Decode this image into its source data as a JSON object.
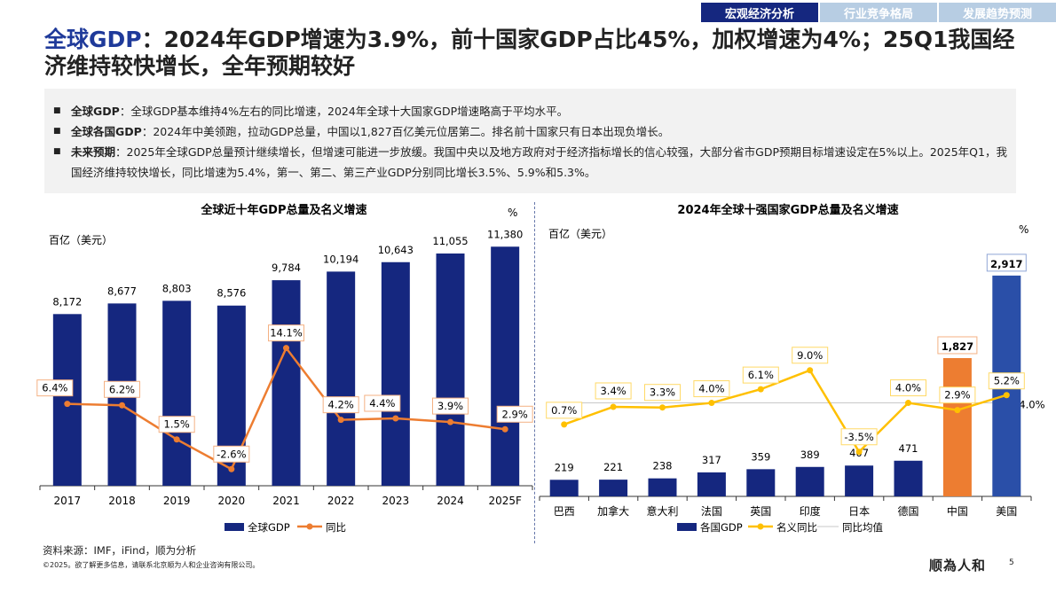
{
  "nav": {
    "tabs": [
      "宏观经济分析",
      "行业竞争格局",
      "发展趋势预测"
    ],
    "active": 0
  },
  "header": {
    "title_highlight": "全球GDP",
    "title_rest": "：2024年GDP增速为3.9%，前十国家GDP占比45%，加权增速为4%；25Q1我国经济维持较快增长，全年预期较好"
  },
  "summary": [
    {
      "label": "全球GDP",
      "text": "：全球GDP基本维持4%左右的同比增速，2024年全球十大国家GDP增速略高于平均水平。"
    },
    {
      "label": "全球各国GDP",
      "text": "：2024年中美领跑，拉动GDP总量，中国以1,827百亿美元位居第二。排名前十国家只有日本出现负增长。"
    },
    {
      "label": "未来预期",
      "text": "：2025年全球GDP总量预计继续增长，但增速可能进一步放缓。我国中央以及地方政府对于经济指标增长的信心较强，大部分省市GDP预期目标增速设定在5%以上。2025年Q1，我国经济维持较快增长，同比增速为5.4%，第一、第二、第三产业GDP分别同比增长3.5%、5.9%和5.3%。"
    }
  ],
  "chart_data": [
    {
      "type": "bar+line",
      "title": "全球近十年GDP总量及名义增速",
      "ylabel_left": "百亿（美元）",
      "ylabel_right": "%",
      "categories": [
        "2017",
        "2018",
        "2019",
        "2020",
        "2021",
        "2022",
        "2023",
        "2024",
        "2025F"
      ],
      "series": [
        {
          "name": "全球GDP",
          "type": "bar",
          "color": "#15277f",
          "values": [
            8172,
            8677,
            8803,
            8576,
            9784,
            10194,
            10643,
            11055,
            11380
          ],
          "labels": [
            "8,172",
            "8,677",
            "8,803",
            "8,576",
            "9,784",
            "10,194",
            "10,643",
            "11,055",
            "11,380"
          ]
        },
        {
          "name": "同比",
          "type": "line",
          "color": "#ed7d31",
          "values": [
            6.4,
            6.2,
            1.5,
            -2.6,
            14.1,
            4.2,
            4.4,
            3.9,
            2.9
          ],
          "labels": [
            "6.4%",
            "6.2%",
            "1.5%",
            "-2.6%",
            "14.1%",
            "4.2%",
            "4.4%",
            "3.9%",
            "2.9%"
          ]
        }
      ],
      "legend": "bottom"
    },
    {
      "type": "bar+line",
      "title": "2024年全球十强国家GDP总量及名义增速",
      "ylabel_left": "百亿（美元）",
      "ylabel_right": "%",
      "categories": [
        "巴西",
        "加拿大",
        "意大利",
        "法国",
        "英国",
        "印度",
        "日本",
        "德国",
        "中国",
        "美国"
      ],
      "series": [
        {
          "name": "各国GDP",
          "type": "bar",
          "color": "#15277f",
          "highlight_colors": {
            "中国": "#ed7d31",
            "美国": "#2a4fa8"
          },
          "values": [
            219,
            221,
            238,
            317,
            359,
            389,
            407,
            471,
            1827,
            2917
          ],
          "labels": [
            "219",
            "221",
            "238",
            "317",
            "359",
            "389",
            "407",
            "471",
            "1,827",
            "2,917"
          ]
        },
        {
          "name": "名义同比",
          "type": "line",
          "color": "#ffc000",
          "values": [
            0.7,
            3.4,
            3.3,
            4.0,
            6.1,
            9.0,
            -3.5,
            4.0,
            2.9,
            5.2
          ],
          "labels": [
            "0.7%",
            "3.4%",
            "3.3%",
            "4.0%",
            "6.1%",
            "9.0%",
            "-3.5%",
            "4.0%",
            "2.9%",
            "5.2%"
          ]
        },
        {
          "name": "同比均值",
          "type": "reference",
          "color": "#c8c8c8",
          "value": 4.0,
          "label": "4.0%"
        }
      ],
      "legend": "bottom"
    }
  ],
  "footer": {
    "source": "资料来源：IMF，iFind，顺为分析",
    "copyright": "©2025。欲了解更多信息，请联系北京顺为人和企业咨询有限公司。",
    "logo": "顺為人和",
    "page": "5"
  }
}
